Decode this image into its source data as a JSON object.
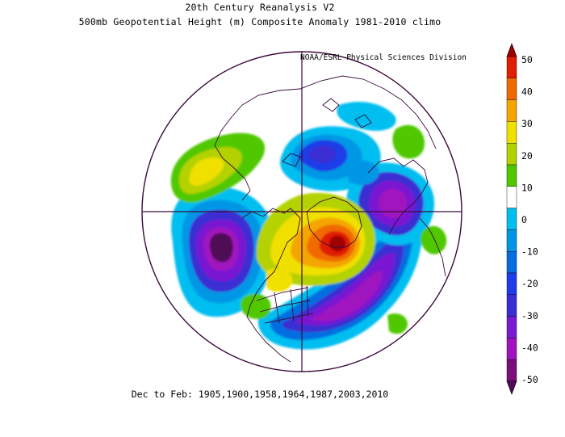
{
  "header": {
    "title": "20th Century Reanalysis V2",
    "subtitle": "500mb Geopotential Height (m) Composite Anomaly 1981-2010 climo",
    "credit": "NOAA/ESRL Physical Sciences Division"
  },
  "footer": {
    "caption": "Dec to Feb: 1905,1900,1958,1964,1987,2003,2010"
  },
  "colorbar": {
    "ticks": [
      "50",
      "40",
      "30",
      "20",
      "10",
      "0",
      "-10",
      "-20",
      "-30",
      "-40",
      "-50"
    ],
    "colors": [
      "#a00000",
      "#e01e00",
      "#f06a00",
      "#f5a500",
      "#f0e000",
      "#b4d200",
      "#4fc800",
      "#ffffff",
      "#00bef0",
      "#0096e6",
      "#006ee0",
      "#1e3ce8",
      "#3a2ed2",
      "#7a18d2",
      "#a012be",
      "#7a0e7a",
      "#500a55"
    ]
  },
  "map": {
    "projection": "north-polar-stereographic",
    "anomalies": [
      {
        "region": "greenland-canada-positive",
        "level": 50
      },
      {
        "region": "north-pacific-negative",
        "level": -50
      },
      {
        "region": "north-atlantic-negative",
        "level": -40
      },
      {
        "region": "siberia-negative",
        "level": -40
      },
      {
        "region": "arctic-siberia-negative",
        "level": -20
      },
      {
        "region": "asia-positive",
        "level": 20
      },
      {
        "region": "north-america-positive",
        "level": 20
      }
    ]
  }
}
